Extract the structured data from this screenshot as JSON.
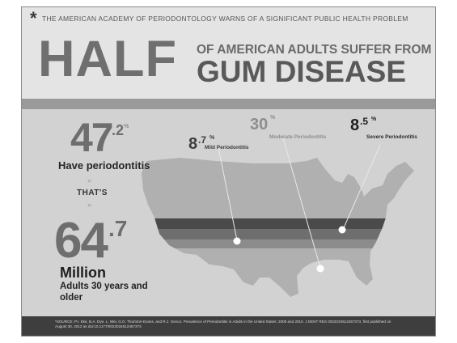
{
  "header": {
    "asterisk": "*",
    "top_line": "THE AMERICAN ACADEMY OF PERIODONTOLOGY WARNS OF A SIGNIFICANT PUBLIC HEALTH PROBLEM",
    "half": "HALF",
    "adults_line": "OF AMERICAN ADULTS SUFFER FROM",
    "gum_line": "GUM DISEASE"
  },
  "left_stats": {
    "stat1_main": "47",
    "stat1_sup": ".2",
    "stat1_pct": "%",
    "stat1_label": "Have periodontitis",
    "chevrons": "»",
    "connector": "THAT'S",
    "stat2_main": "64",
    "stat2_sup": ".7",
    "million": "Million",
    "adults_line": "Adults 30 years and older"
  },
  "map_labels": {
    "mild_num": "8",
    "mild_sup": ".7",
    "mild_pct": "%",
    "mild_name": "Mild Periodontitis",
    "moderate_num": "30",
    "moderate_pct": "%",
    "moderate_name": "Moderate Periodontitis",
    "severe_num": "8",
    "severe_sup": ".5",
    "severe_pct": "%",
    "severe_name": "Severe Periodontitis"
  },
  "footer": {
    "source": "*SOURCE: P.I. Eke, B.A. Dye, L. Wei, G.O. Thornton-Evans, and R.J. Genco. Prevalence of Periodontitis in Adults in the United States: 2009 and 2010. J DENT RES 0022034512457373, first published on August 30, 2012 as doi:10.1177/0022034512457373"
  },
  "colors": {
    "background": "#d2d2d2",
    "header_bg": "#e4e4e4",
    "band": "#9a9a9a",
    "map_light": "#b0b0b0",
    "stripe_dark": "#4a4a4a",
    "stripe_mid": "#848484",
    "footer": "#3e3e3e"
  }
}
